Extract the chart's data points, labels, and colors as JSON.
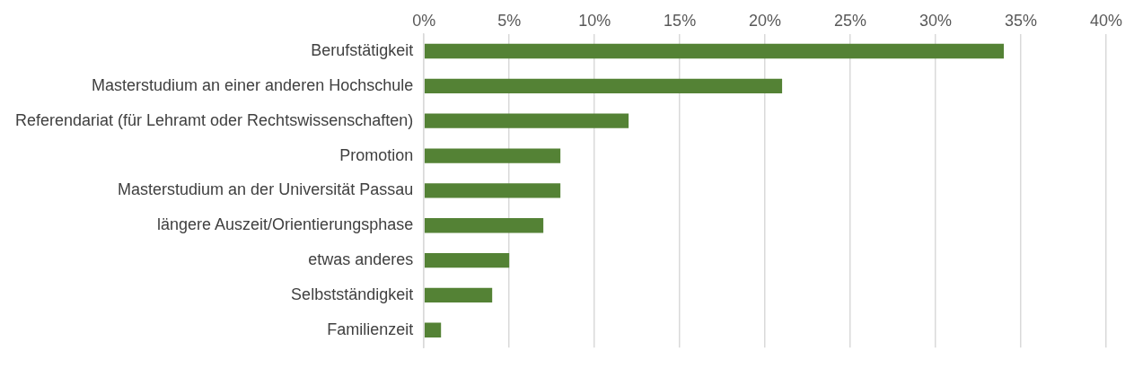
{
  "chart_data": {
    "type": "bar",
    "orientation": "horizontal",
    "categories": [
      "Berufstätigkeit",
      "Masterstudium an einer anderen Hochschule",
      "Referendariat (für Lehramt oder Rechtswissenschaften)",
      "Promotion",
      "Masterstudium an der Universität Passau",
      "längere Auszeit/Orientierungsphase",
      "etwas anderes",
      "Selbstständigkeit",
      "Familienzeit"
    ],
    "values": [
      34,
      21,
      12,
      8,
      8,
      7,
      5,
      4,
      1
    ],
    "color": "#548235",
    "xlim": [
      0,
      40
    ],
    "xticks": [
      {
        "value": 0,
        "label": "0%"
      },
      {
        "value": 5,
        "label": "5%"
      },
      {
        "value": 10,
        "label": "10%"
      },
      {
        "value": 15,
        "label": "15%"
      },
      {
        "value": 20,
        "label": "20%"
      },
      {
        "value": 25,
        "label": "25%"
      },
      {
        "value": 30,
        "label": "30%"
      },
      {
        "value": 35,
        "label": "35%"
      },
      {
        "value": 40,
        "label": "40%"
      }
    ],
    "grid": "x",
    "legend": false
  }
}
